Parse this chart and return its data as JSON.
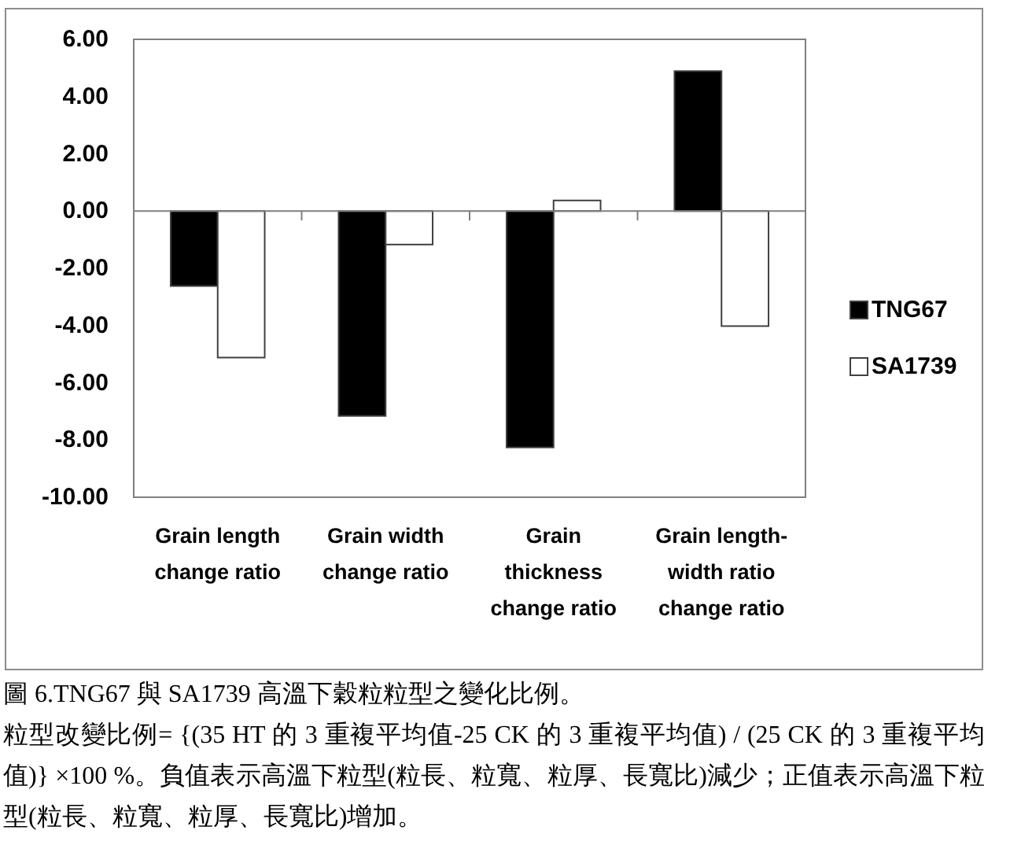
{
  "chart_data": {
    "type": "bar",
    "categories": [
      "Grain length change ratio",
      "Grain width change ratio",
      "Grain thickness change ratio",
      "Grain length-width ratio change ratio"
    ],
    "series": [
      {
        "name": "TNG67",
        "color": "#000000",
        "values": [
          -2.62,
          -7.16,
          -8.26,
          4.89
        ]
      },
      {
        "name": "SA1739",
        "color": "#ffffff",
        "values": [
          -5.12,
          -1.17,
          0.37,
          -4.02
        ]
      }
    ],
    "ylim": [
      -10,
      6
    ],
    "yticks": [
      {
        "value": -10,
        "label": "-10.00"
      },
      {
        "value": -8,
        "label": "-8.00"
      },
      {
        "value": -6,
        "label": "-6.00"
      },
      {
        "value": -4,
        "label": "-4.00"
      },
      {
        "value": -2,
        "label": "-2.00"
      },
      {
        "value": 0,
        "label": "0.00"
      },
      {
        "value": 2,
        "label": "2.00"
      },
      {
        "value": 4,
        "label": "4.00"
      },
      {
        "value": 6,
        "label": "6.00"
      }
    ],
    "legend": "right",
    "annotations": [
      "圖 6.TNG67 與 SA1739 高溫下穀粒粒型之變化比例。",
      "粒型改變比例= {(35 HT 的 3 重複平均值-25 CK 的 3 重複平均值) / (25 CK 的 3 重複平均值)} ×100 %。負值表示高溫下粒型(粒長、粒寬、粒厚、長寬比)減少；正值表示高溫下粒型(粒長、粒寬、粒厚、長寬比)增加。"
    ]
  }
}
